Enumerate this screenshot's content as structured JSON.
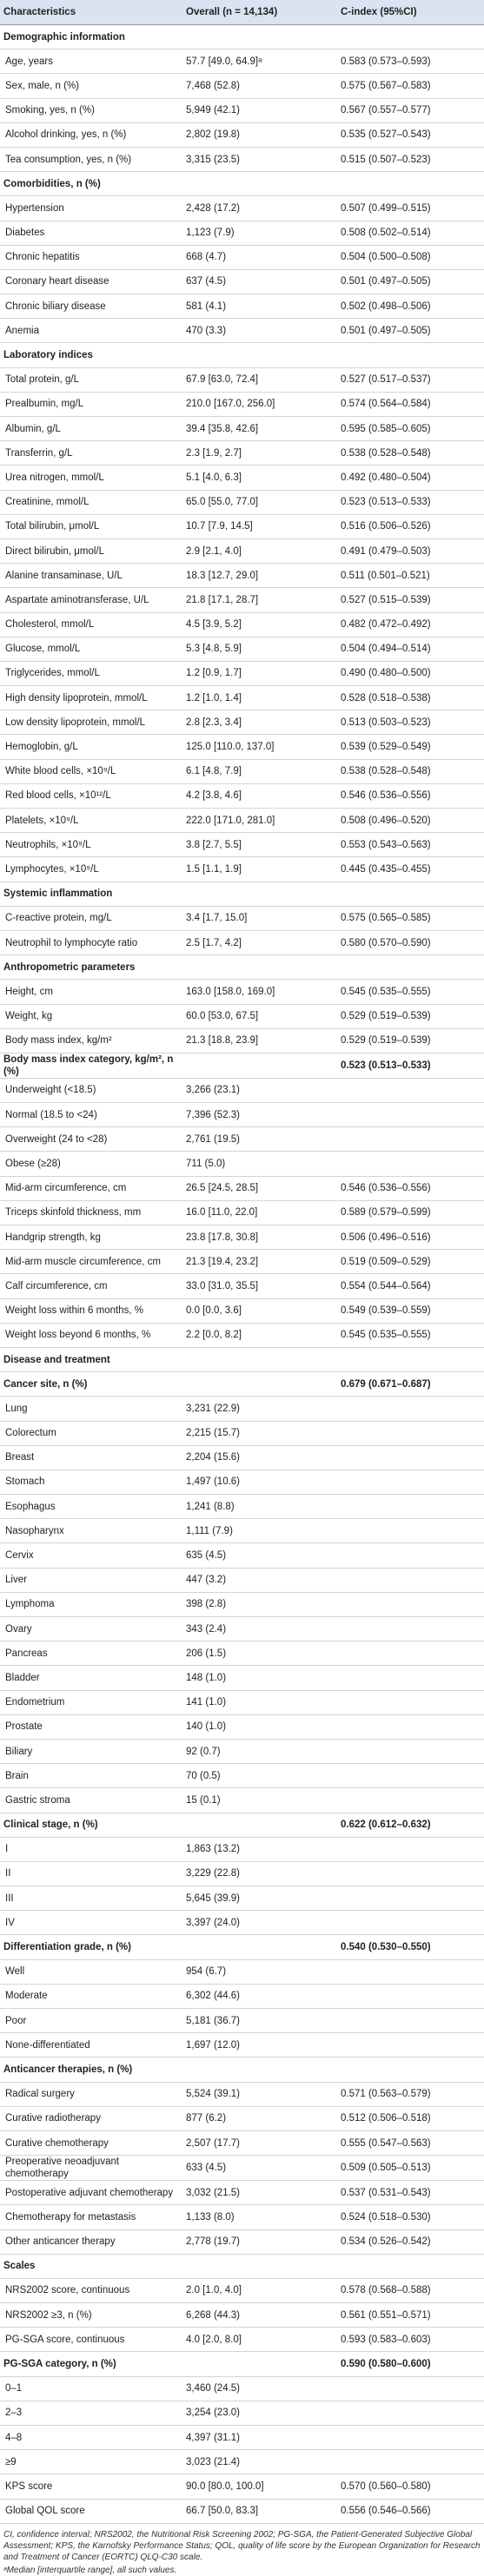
{
  "table": {
    "header": [
      "Characteristics",
      "Overall (n = 14,134)",
      "C-index (95%CI)"
    ],
    "sections": [
      {
        "title": "Demographic information",
        "rows": [
          [
            "Age, years",
            "57.7 [49.0, 64.9]ᵃ",
            "0.583 (0.573–0.593)"
          ],
          [
            "Sex, male, n (%)",
            "7,468 (52.8)",
            "0.575 (0.567–0.583)"
          ],
          [
            "Smoking, yes, n (%)",
            "5,949 (42.1)",
            "0.567 (0.557–0.577)"
          ],
          [
            "Alcohol drinking, yes, n (%)",
            "2,802 (19.8)",
            "0.535 (0.527–0.543)"
          ],
          [
            "Tea consumption, yes, n (%)",
            "3,315 (23.5)",
            "0.515 (0.507–0.523)"
          ]
        ]
      },
      {
        "title": "Comorbidities, n (%)",
        "rows": [
          [
            "Hypertension",
            "2,428 (17.2)",
            "0.507 (0.499–0.515)"
          ],
          [
            "Diabetes",
            "1,123 (7.9)",
            "0.508 (0.502–0.514)"
          ],
          [
            "Chronic hepatitis",
            "668 (4.7)",
            "0.504 (0.500–0.508)"
          ],
          [
            "Coronary heart disease",
            "637 (4.5)",
            "0.501 (0.497–0.505)"
          ],
          [
            "Chronic biliary disease",
            "581 (4.1)",
            "0.502 (0.498–0.506)"
          ],
          [
            "Anemia",
            "470 (3.3)",
            "0.501 (0.497–0.505)"
          ]
        ]
      },
      {
        "title": "Laboratory indices",
        "rows": [
          [
            "Total protein, g/L",
            "67.9 [63.0, 72.4]",
            "0.527 (0.517–0.537)"
          ],
          [
            "Prealbumin, mg/L",
            "210.0 [167.0, 256.0]",
            "0.574 (0.564–0.584)"
          ],
          [
            "Albumin, g/L",
            "39.4 [35.8, 42.6]",
            "0.595 (0.585–0.605)"
          ],
          [
            "Transferrin, g/L",
            "2.3 [1.9, 2.7]",
            "0.538 (0.528–0.548)"
          ],
          [
            "Urea nitrogen, mmol/L",
            "5.1 [4.0, 6.3]",
            "0.492 (0.480–0.504)"
          ],
          [
            "Creatinine, mmol/L",
            "65.0 [55.0, 77.0]",
            "0.523 (0.513–0.533)"
          ],
          [
            "Total bilirubin, μmol/L",
            "10.7 [7.9, 14.5]",
            "0.516 (0.506–0.526)"
          ],
          [
            "Direct bilirubin, μmol/L",
            "2.9 [2.1, 4.0]",
            "0.491 (0.479–0.503)"
          ],
          [
            "Alanine transaminase, U/L",
            "18.3 [12.7, 29.0]",
            "0.511 (0.501–0.521)"
          ],
          [
            "Aspartate aminotransferase, U/L",
            "21.8 [17.1, 28.7]",
            "0.527 (0.515–0.539)"
          ],
          [
            "Cholesterol, mmol/L",
            "4.5 [3.9, 5.2]",
            "0.482 (0.472–0.492)"
          ],
          [
            "Glucose, mmol/L",
            "5.3 [4.8, 5.9]",
            "0.504 (0.494–0.514)"
          ],
          [
            "Triglycerides, mmol/L",
            "1.2 [0.9, 1.7]",
            "0.490 (0.480–0.500)"
          ],
          [
            "High density lipoprotein, mmol/L",
            "1.2 [1.0, 1.4]",
            "0.528 (0.518–0.538)"
          ],
          [
            "Low density lipoprotein, mmol/L",
            "2.8 [2.3, 3.4]",
            "0.513 (0.503–0.523)"
          ],
          [
            "Hemoglobin, g/L",
            "125.0 [110.0, 137.0]",
            "0.539 (0.529–0.549)"
          ],
          [
            "White blood cells, ×10⁹/L",
            "6.1 [4.8, 7.9]",
            "0.538 (0.528–0.548)"
          ],
          [
            "Red blood cells, ×10¹²/L",
            "4.2 [3.8, 4.6]",
            "0.546 (0.536–0.556)"
          ],
          [
            "Platelets, ×10⁹/L",
            "222.0 [171.0, 281.0]",
            "0.508 (0.496–0.520)"
          ],
          [
            "Neutrophils, ×10⁹/L",
            "3.8 [2.7, 5.5]",
            "0.553 (0.543–0.563)"
          ],
          [
            "Lymphocytes, ×10⁹/L",
            "1.5 [1.1, 1.9]",
            "0.445 (0.435–0.455)"
          ]
        ]
      },
      {
        "title": "Systemic inflammation",
        "rows": [
          [
            "C-reactive protein, mg/L",
            "3.4 [1.7, 15.0]",
            "0.575 (0.565–0.585)"
          ],
          [
            "Neutrophil to lymphocyte ratio",
            "2.5 [1.7, 4.2]",
            "0.580 (0.570–0.590)"
          ]
        ]
      },
      {
        "title": "Anthropometric parameters",
        "rows": [
          [
            "Height, cm",
            "163.0 [158.0, 169.0]",
            "0.545 (0.535–0.555)"
          ],
          [
            "Weight, kg",
            "60.0 [53.0, 67.5]",
            "0.529 (0.519–0.539)"
          ],
          [
            "Body mass index, kg/m²",
            "21.3 [18.8, 23.9]",
            "0.529 (0.519–0.539)"
          ]
        ]
      },
      {
        "title": "Body mass index category, kg/m², n (%)",
        "cindex": "0.523 (0.513–0.533)",
        "rows": [
          [
            "Underweight (<18.5)",
            "3,266 (23.1)"
          ],
          [
            "Normal (18.5 to <24)",
            "7,396 (52.3)"
          ],
          [
            "Overweight (24 to <28)",
            "2,761 (19.5)"
          ],
          [
            "Obese (≥28)",
            "711 (5.0)"
          ],
          [
            "Mid-arm circumference, cm",
            "26.5 [24.5, 28.5]",
            "0.546 (0.536–0.556)"
          ],
          [
            "Triceps skinfold thickness, mm",
            "16.0 [11.0, 22.0]",
            "0.589 (0.579–0.599)"
          ],
          [
            "Handgrip strength, kg",
            "23.8 [17.8, 30.8]",
            "0.506 (0.496–0.516)"
          ],
          [
            "Mid-arm muscle circumference, cm",
            "21.3 [19.4, 23.2]",
            "0.519 (0.509–0.529)"
          ],
          [
            "Calf circumference, cm",
            "33.0 [31.0, 35.5]",
            "0.554 (0.544–0.564)"
          ],
          [
            "Weight loss within 6 months, %",
            "0.0 [0.0, 3.6]",
            "0.549 (0.539–0.559)"
          ],
          [
            "Weight loss beyond 6 months, %",
            "2.2 [0.0, 8.2]",
            "0.545 (0.535–0.555)"
          ]
        ]
      },
      {
        "title": "Disease and treatment",
        "rows": []
      },
      {
        "title": "Cancer site, n (%)",
        "cindex": "0.679 (0.671–0.687)",
        "rows": [
          [
            "Lung",
            "3,231 (22.9)"
          ],
          [
            "Colorectum",
            "2,215 (15.7)"
          ],
          [
            "Breast",
            "2,204 (15.6)"
          ],
          [
            "Stomach",
            "1,497 (10.6)"
          ],
          [
            "Esophagus",
            "1,241 (8.8)"
          ],
          [
            "Nasopharynx",
            "1,111 (7.9)"
          ],
          [
            "Cervix",
            "635 (4.5)"
          ],
          [
            "Liver",
            "447 (3.2)"
          ],
          [
            "Lymphoma",
            "398 (2.8)"
          ],
          [
            "Ovary",
            "343 (2.4)"
          ],
          [
            "Pancreas",
            "206 (1.5)"
          ],
          [
            "Bladder",
            "148 (1.0)"
          ],
          [
            "Endometrium",
            "141 (1.0)"
          ],
          [
            "Prostate",
            "140 (1.0)"
          ],
          [
            "Biliary",
            "92 (0.7)"
          ],
          [
            "Brain",
            "70 (0.5)"
          ],
          [
            "Gastric stroma",
            "15 (0.1)"
          ]
        ]
      },
      {
        "title": "Clinical stage, n (%)",
        "cindex": "0.622 (0.612–0.632)",
        "rows": [
          [
            "I",
            "1,863 (13.2)"
          ],
          [
            "II",
            "3,229 (22.8)"
          ],
          [
            "III",
            "5,645 (39.9)"
          ],
          [
            "IV",
            "3,397 (24.0)"
          ]
        ]
      },
      {
        "title": "Differentiation grade, n (%)",
        "cindex": "0.540 (0.530–0.550)",
        "rows": [
          [
            "Well",
            "954 (6.7)"
          ],
          [
            "Moderate",
            "6,302 (44.6)"
          ],
          [
            "Poor",
            "5,181 (36.7)"
          ],
          [
            "None-differentiated",
            "1,697 (12.0)"
          ]
        ]
      },
      {
        "title": "Anticancer therapies, n (%)",
        "rows": [
          [
            "Radical surgery",
            "5,524 (39.1)",
            "0.571 (0.563–0.579)"
          ],
          [
            "Curative radiotherapy",
            "877 (6.2)",
            "0.512 (0.506–0.518)"
          ],
          [
            "Curative chemotherapy",
            "2,507 (17.7)",
            "0.555 (0.547–0.563)"
          ],
          [
            "Preoperative neoadjuvant chemotherapy",
            "633 (4.5)",
            "0.509 (0.505–0.513)"
          ],
          [
            "Postoperative adjuvant chemotherapy",
            "3,032 (21.5)",
            "0.537 (0.531–0.543)"
          ],
          [
            "Chemotherapy for metastasis",
            "1,133 (8.0)",
            "0.524 (0.518–0.530)"
          ],
          [
            "Other anticancer therapy",
            "2,778 (19.7)",
            "0.534 (0.526–0.542)"
          ]
        ]
      },
      {
        "title": "Scales",
        "rows": [
          [
            "NRS2002 score, continuous",
            "2.0 [1.0, 4.0]",
            "0.578 (0.568–0.588)"
          ],
          [
            "NRS2002 ≥3, n (%)",
            "6,268 (44.3)",
            "0.561 (0.551–0.571)"
          ],
          [
            "PG-SGA score, continuous",
            "4.0 [2.0, 8.0]",
            "0.593 (0.583–0.603)"
          ]
        ]
      },
      {
        "title": "PG-SGA category, n (%)",
        "cindex": "0.590 (0.580–0.600)",
        "rows": [
          [
            "0–1",
            "3,460 (24.5)"
          ],
          [
            "2–3",
            "3,254 (23.0)"
          ],
          [
            "4–8",
            "4,397 (31.1)"
          ],
          [
            "≥9",
            "3,023 (21.4)"
          ],
          [
            "KPS score",
            "90.0 [80.0, 100.0]",
            "0.570 (0.560–0.580)"
          ],
          [
            "Global QOL score",
            "66.7 [50.0, 83.3]",
            "0.556 (0.546–0.566)"
          ]
        ]
      }
    ],
    "footnotes": [
      "CI, confidence interval; NRS2002, the Nutritional Risk Screening 2002; PG-SGA, the Patient-Generated Subjective Global Assessment; KPS, the Karnofsky Performance Status; QOL, quality of life score by the European Organization for Research and Treatment of Cancer (EORTC) QLQ-C30 scale.",
      "ᵃMedian [interquartile range], all such values."
    ]
  }
}
